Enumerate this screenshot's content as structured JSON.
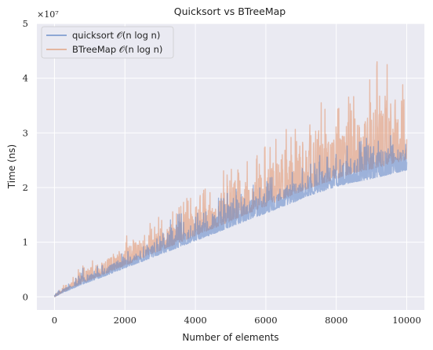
{
  "chart_data": {
    "type": "line",
    "title": "Quicksort vs BTreeMap",
    "xlabel": "Number of elements",
    "ylabel": "Time (ns)",
    "y_scale_label": "×10⁷",
    "xlim": [
      -500,
      10500
    ],
    "ylim": [
      -2.4,
      50.0
    ],
    "y_unit_multiplier": 10000000.0,
    "x_ticks": [
      0,
      2000,
      4000,
      6000,
      8000,
      10000
    ],
    "x_tick_labels": [
      "0",
      "2000",
      "4000",
      "6000",
      "8000",
      "10000"
    ],
    "y_ticks": [
      0,
      10,
      20,
      30,
      40,
      50
    ],
    "y_tick_labels": [
      "0",
      "1",
      "2",
      "3",
      "4",
      "5"
    ],
    "grid": true,
    "legend_position": "upper-left",
    "series": [
      {
        "name": "quicksort 𝒪(n log n)",
        "color": "#5d84c6",
        "opacity": 0.55,
        "x": [
          0,
          250,
          500,
          750,
          1000,
          1500,
          2000,
          2500,
          3000,
          3500,
          4000,
          4500,
          5000,
          5500,
          6000,
          6500,
          6900,
          7100,
          7500,
          8000,
          8500,
          9000,
          9300,
          9500,
          9800,
          10000
        ],
        "y_min": [
          0.0,
          0.8,
          1.5,
          2.2,
          2.8,
          4.0,
          5.3,
          6.5,
          7.8,
          9.0,
          10.3,
          11.5,
          12.8,
          14.1,
          15.3,
          16.6,
          17.6,
          18.3,
          19.1,
          20.2,
          21.0,
          21.6,
          22.1,
          22.4,
          22.9,
          23.2
        ],
        "y_max": [
          0.4,
          2.2,
          2.8,
          5.8,
          5.5,
          6.5,
          8.4,
          9.5,
          11.9,
          16.9,
          15.8,
          17.0,
          21.2,
          20.0,
          21.8,
          23.0,
          23.5,
          24.5,
          26.0,
          26.8,
          28.5,
          29.5,
          30.0,
          31.0,
          32.5,
          28.0
        ]
      },
      {
        "name": "BTreeMap 𝒪(n log n)",
        "color": "#e29a74",
        "opacity": 0.6,
        "x": [
          0,
          250,
          500,
          750,
          1000,
          1500,
          2000,
          2500,
          3000,
          3500,
          4000,
          4500,
          5000,
          5500,
          6000,
          6500,
          6900,
          7100,
          7500,
          8000,
          8500,
          9000,
          9300,
          9500,
          9800,
          10000
        ],
        "y_min": [
          0.0,
          0.9,
          1.7,
          2.4,
          3.1,
          4.4,
          5.8,
          7.1,
          8.5,
          9.8,
          11.2,
          12.5,
          13.9,
          15.3,
          16.6,
          18.0,
          19.0,
          19.6,
          20.5,
          21.6,
          22.7,
          23.4,
          23.9,
          24.2,
          24.8,
          25.1
        ],
        "y_max": [
          0.5,
          2.6,
          3.6,
          6.2,
          6.8,
          8.4,
          11.2,
          13.0,
          15.8,
          16.5,
          20.0,
          19.5,
          26.5,
          25.0,
          28.0,
          33.0,
          30.2,
          31.0,
          37.5,
          36.0,
          38.0,
          40.0,
          48.0,
          44.8,
          45.0,
          35.5
        ]
      }
    ]
  }
}
